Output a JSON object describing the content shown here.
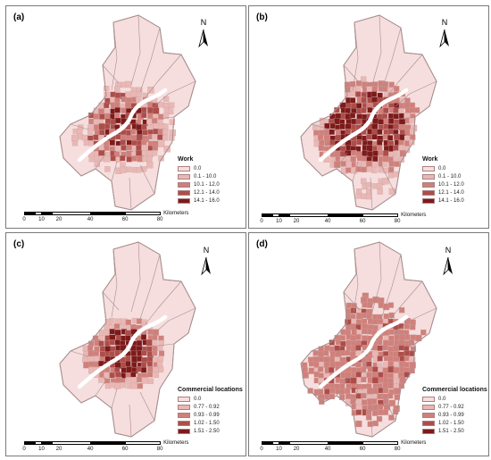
{
  "north_label": "N",
  "scale": {
    "ticks": [
      "0",
      "10",
      "20",
      "40",
      "60",
      "80"
    ],
    "unit": "Kilometers"
  },
  "colors": {
    "classes": [
      "#f7dede",
      "#e9b8b5",
      "#d0807b",
      "#ad4d49",
      "#7d1a1a"
    ],
    "outline": "#a88e8e",
    "river": "#ffffff"
  },
  "panels": [
    {
      "label": "(a)",
      "legend_title": "Work",
      "legend_items": [
        "0.0",
        "0.1 - 10.0",
        "10.1 - 12.0",
        "12.1 - 14.0",
        "14.1 - 16.0"
      ],
      "pattern": "work_a"
    },
    {
      "label": "(b)",
      "legend_title": "Work",
      "legend_items": [
        "0.0",
        "0.1 - 10.0",
        "10.1 - 12.0",
        "12.1 - 14.0",
        "14.1 - 16.0"
      ],
      "pattern": "work_b"
    },
    {
      "label": "(c)",
      "legend_title": "Commercial locations",
      "legend_items": [
        "0.0",
        "0.77 - 0.92",
        "0.93 - 0.99",
        "1.02 - 1.50",
        "1.51 - 2.50"
      ],
      "pattern": "comm_c"
    },
    {
      "label": "(d)",
      "legend_title": "Commercial locations",
      "legend_items": [
        "0.0",
        "0.77 - 0.92",
        "0.93 - 0.99",
        "1.02 - 1.50",
        "1.51 - 2.50"
      ],
      "pattern": "comm_d"
    }
  ]
}
